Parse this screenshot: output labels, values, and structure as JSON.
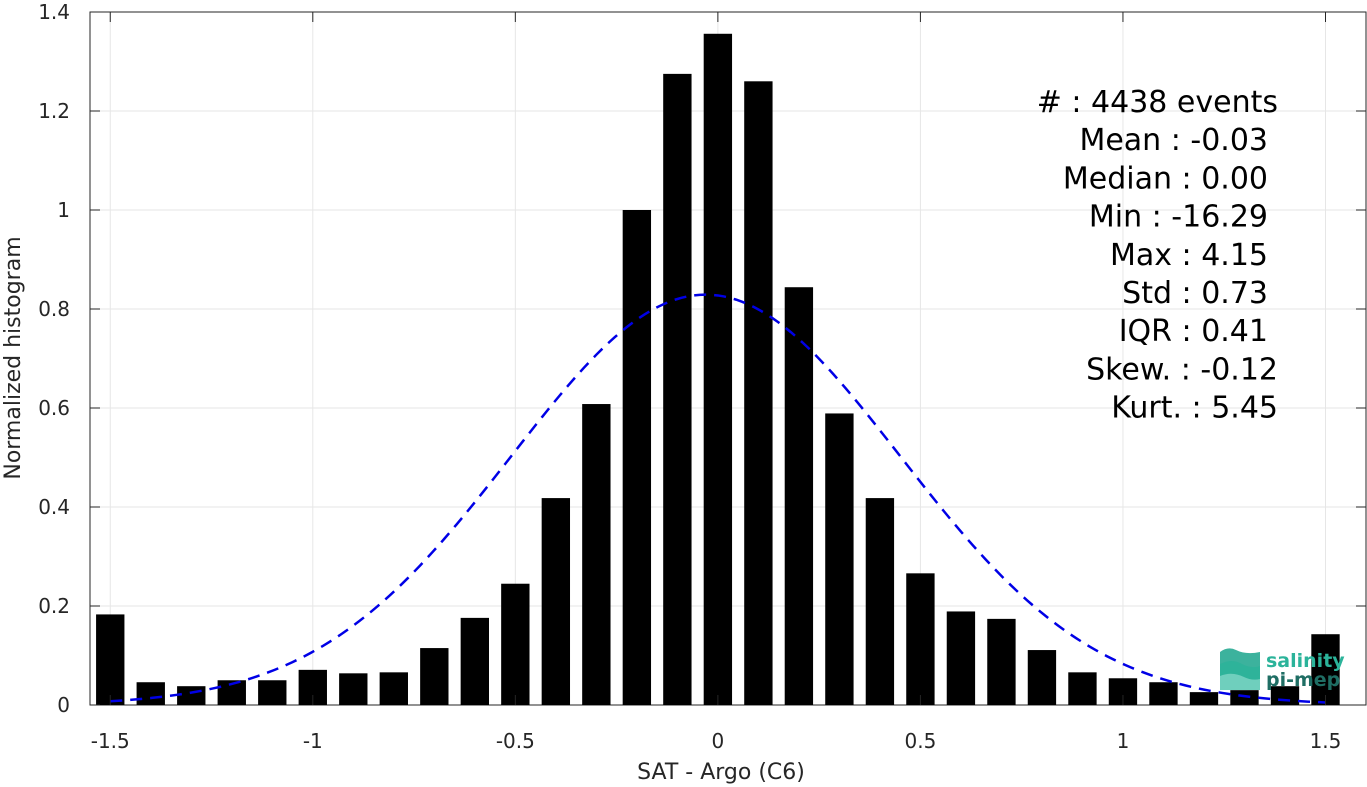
{
  "chart_data": {
    "type": "bar",
    "xlabel": "SAT - Argo (C6)",
    "ylabel": "Normalized histogram",
    "xlim": [
      -1.55,
      1.6
    ],
    "ylim": [
      0,
      1.4
    ],
    "xticks": [
      -1.5,
      -1,
      -0.5,
      0,
      0.5,
      1,
      1.5
    ],
    "xtick_labels": [
      "-1.5",
      "-1",
      "-0.5",
      "0",
      "0.5",
      "1",
      "1.5"
    ],
    "yticks": [
      0,
      0.2,
      0.4,
      0.6,
      0.8,
      1,
      1.2,
      1.4
    ],
    "ytick_labels": [
      "0",
      "0.2",
      "0.4",
      "0.6",
      "0.8",
      "1",
      "1.2",
      "1.4"
    ],
    "grid": true,
    "bar_color": "#000000",
    "bar_width": 0.07,
    "x": [
      -1.5,
      -1.4,
      -1.3,
      -1.2,
      -1.1,
      -1.0,
      -0.9,
      -0.8,
      -0.7,
      -0.6,
      -0.5,
      -0.4,
      -0.3,
      -0.2,
      -0.1,
      0.0,
      0.1,
      0.2,
      0.3,
      0.4,
      0.5,
      0.6,
      0.7,
      0.8,
      0.9,
      1.0,
      1.1,
      1.2,
      1.3,
      1.4,
      1.5
    ],
    "values": [
      0.183,
      0.046,
      0.038,
      0.05,
      0.05,
      0.071,
      0.064,
      0.066,
      0.115,
      0.176,
      0.245,
      0.418,
      0.608,
      1.0,
      1.275,
      1.356,
      1.26,
      0.844,
      0.589,
      0.418,
      0.266,
      0.189,
      0.174,
      0.111,
      0.066,
      0.054,
      0.046,
      0.026,
      0.03,
      0.038,
      0.143
    ],
    "fit": {
      "type": "gaussian",
      "color": "#0000e6",
      "style": "dashed",
      "mean": -0.03,
      "sigma": 0.48,
      "peak": 0.829,
      "x_range": [
        -1.5,
        1.5
      ]
    },
    "stats_lines": [
      "#  : 4438 events",
      "Mean : -0.03",
      "Median : 0.00",
      "Min : -16.29",
      "Max : 4.15",
      "Std : 0.73",
      "IQR : 0.41",
      "Skew. : -0.12",
      "Kurt. : 5.45"
    ]
  },
  "logo": {
    "line1": "salinity",
    "line2": "pi-mep",
    "color1": "#2bb39a",
    "color2": "#1f6e64"
  }
}
